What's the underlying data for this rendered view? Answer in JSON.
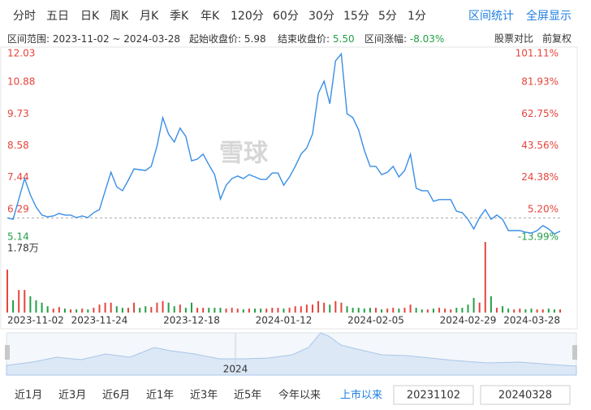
{
  "toolbar": {
    "periods": [
      "分时",
      "五日",
      "日K",
      "周K",
      "月K",
      "季K",
      "年K",
      "120分",
      "60分",
      "30分",
      "15分",
      "5分",
      "1分"
    ],
    "actions": [
      "区间统计",
      "全屏显示"
    ]
  },
  "info": {
    "range_label": "区间范围:",
    "range": "2023-11-02 ~ 2024-03-28",
    "start_label": "起始收盘价:",
    "start_close": "5.98",
    "end_label": "结束收盘价:",
    "end_close": "5.50",
    "change_label": "区间涨幅:",
    "change": "-8.03%",
    "compare": "股票对比",
    "adjust": "前复权"
  },
  "watermark": "雪球",
  "chart_data": [
    {
      "type": "line",
      "categories": [
        "2023-11-02",
        null,
        null,
        null,
        null,
        null,
        null,
        null,
        null,
        null,
        null,
        null,
        null,
        null,
        null,
        null,
        "2023-11-24",
        null,
        null,
        null,
        null,
        null,
        null,
        null,
        null,
        null,
        null,
        null,
        null,
        null,
        null,
        null,
        "2023-12-18",
        null,
        null,
        null,
        null,
        null,
        null,
        null,
        null,
        null,
        null,
        null,
        null,
        null,
        null,
        null,
        "2024-01-12",
        null,
        null,
        null,
        null,
        null,
        null,
        null,
        null,
        null,
        null,
        null,
        null,
        null,
        null,
        null,
        "2024-02-05",
        null,
        null,
        null,
        null,
        null,
        null,
        null,
        null,
        null,
        null,
        null,
        null,
        null,
        null,
        null,
        "2024-02-29",
        null,
        null,
        null,
        null,
        null,
        null,
        null,
        null,
        null,
        null,
        null,
        null,
        null,
        null,
        null,
        "2024-03-28"
      ],
      "series": [
        {
          "color": "#3a8ee6",
          "values": [
            5.98,
            5.93,
            6.66,
            7.4,
            6.81,
            6.37,
            6.08,
            6.02,
            6.05,
            6.14,
            6.08,
            6.08,
            5.99,
            6.05,
            5.99,
            6.17,
            6.28,
            6.96,
            7.63,
            7.1,
            6.96,
            7.34,
            7.75,
            7.72,
            7.69,
            7.84,
            8.57,
            9.6,
            9.01,
            8.72,
            9.22,
            8.92,
            8.04,
            8.1,
            8.28,
            7.9,
            7.54,
            6.66,
            7.16,
            7.4,
            7.49,
            7.4,
            7.54,
            7.46,
            7.37,
            7.37,
            7.6,
            7.6,
            7.16,
            7.46,
            7.84,
            8.28,
            8.51,
            9.01,
            10.48,
            10.92,
            10.1,
            11.65,
            11.9,
            9.74,
            9.6,
            9.16,
            8.42,
            7.84,
            7.84,
            7.54,
            7.63,
            7.84,
            7.46,
            7.69,
            8.28,
            7.05,
            6.96,
            6.96,
            6.58,
            6.64,
            6.64,
            6.64,
            6.22,
            6.17,
            5.93,
            5.58,
            5.99,
            6.28,
            5.93,
            6.08,
            5.93,
            5.52,
            5.52,
            5.52,
            5.46,
            5.43,
            5.52,
            5.7,
            5.58,
            5.4,
            5.5
          ]
        }
      ],
      "ylim": [
        5.14,
        12.03
      ],
      "yticks": [
        5.14,
        6.29,
        7.44,
        8.58,
        9.73,
        10.88,
        12.03
      ],
      "y2lim": [
        -13.99,
        101.11
      ],
      "y2ticks": [
        {
          "value": -13.99,
          "label": "-13.99%"
        },
        {
          "value": 5.2,
          "label": "5.20%"
        },
        {
          "value": 24.38,
          "label": "24.38%"
        },
        {
          "value": 43.56,
          "label": "43.56%"
        },
        {
          "value": 62.75,
          "label": "62.75%"
        },
        {
          "value": 81.93,
          "label": "81.93%"
        },
        {
          "value": 101.11,
          "label": "101.11%"
        }
      ],
      "baseline": 5.98,
      "up_color": "#e5453c",
      "down_color": "#23a047",
      "grid": false
    },
    {
      "type": "bar",
      "values": [
        1.08,
        0.31,
        0.57,
        0.57,
        0.41,
        0.31,
        0.25,
        0.16,
        0.1,
        0.14,
        0.1,
        0.08,
        0.08,
        0.1,
        0.08,
        0.12,
        0.2,
        0.25,
        0.25,
        0.16,
        0.12,
        0.12,
        0.25,
        0.12,
        0.16,
        0.14,
        0.25,
        0.29,
        0.25,
        0.16,
        0.2,
        0.12,
        0.25,
        0.12,
        0.12,
        0.12,
        0.12,
        0.12,
        0.1,
        0.12,
        0.1,
        0.08,
        0.1,
        0.1,
        0.1,
        0.1,
        0.12,
        0.12,
        0.1,
        0.12,
        0.16,
        0.16,
        0.2,
        0.2,
        0.29,
        0.25,
        0.2,
        0.29,
        0.25,
        0.16,
        0.12,
        0.12,
        0.1,
        0.12,
        0.12,
        0.08,
        0.1,
        0.12,
        0.1,
        0.12,
        0.2,
        0.12,
        0.08,
        0.08,
        0.1,
        0.12,
        0.1,
        0.08,
        0.12,
        0.12,
        0.2,
        0.37,
        0.25,
        1.78,
        0.41,
        0.12,
        0.16,
        0.1,
        0.08,
        0.1,
        0.08,
        0.1,
        0.08,
        0.08,
        0.1,
        0.08,
        0.08
      ],
      "ylim": [
        0,
        1.78
      ],
      "yticks": [
        {
          "value": 1.78,
          "label": "1.78万"
        }
      ],
      "up_color": "#e5453c",
      "down_color": "#23a047"
    }
  ],
  "navigator": {
    "label": "2024"
  },
  "range_bar": {
    "presets": [
      "近1月",
      "近3月",
      "近6月",
      "近1年",
      "近3年",
      "近5年",
      "今年以来",
      "上市以来"
    ],
    "active": 7,
    "start_date": "20231102",
    "end_date": "20240328"
  }
}
